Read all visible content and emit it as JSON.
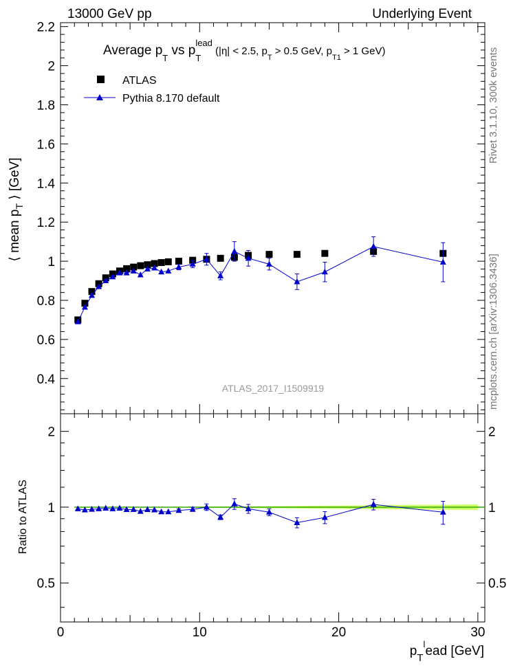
{
  "header": {
    "left": "13000 GeV pp",
    "right": "Underlying Event"
  },
  "side": {
    "top": "Rivet 3.1.10,  300k events",
    "bottom": "mcplots.cern.ch [arXiv:1306.3436]"
  },
  "watermark": "ATLAS_2017_I1509919",
  "title": {
    "a": "Average p",
    "b": "T",
    "c": " vs p",
    "d": "T",
    "e": "lead",
    "f": " (|η| < 2.5, p",
    "g": "T",
    "h": " > 0.5 GeV, p",
    "i": "T1",
    "j": " > 1 GeV)"
  },
  "ylabel_main": {
    "a": "⟨ mean p",
    "b": "T",
    "c": " ⟩ [GeV]"
  },
  "ylabel_ratio": "Ratio to ATLAS",
  "xlabel": {
    "a": "p",
    "b": "T",
    "c": "l",
    "d": "ead [GeV]"
  },
  "chart_data": [
    {
      "type": "scatter",
      "panel": "main",
      "title": "Average pT vs pT lead (|η| < 2.5, pT > 0.5 GeV, pT1 > 1 GeV)",
      "xlabel": "pT lead [GeV]",
      "ylabel": "⟨ mean pT ⟩ [GeV]",
      "xlim": [
        0,
        30.5
      ],
      "ylim": [
        0.22,
        2.22
      ],
      "yticks": [
        0.4,
        0.6,
        0.8,
        1,
        1.2,
        1.4,
        1.6,
        1.8,
        2,
        2.2
      ],
      "xticks": [
        0,
        10,
        20,
        30
      ],
      "legend_position": "top-left",
      "series": [
        {
          "name": "ATLAS",
          "marker": "square",
          "color": "#000000",
          "x": [
            1.25,
            1.75,
            2.25,
            2.75,
            3.25,
            3.75,
            4.25,
            4.75,
            5.25,
            5.75,
            6.25,
            6.75,
            7.25,
            7.75,
            8.5,
            9.5,
            10.5,
            11.5,
            12.5,
            13.5,
            15.0,
            17.0,
            19.0,
            22.5,
            27.5
          ],
          "y": [
            0.7,
            0.785,
            0.845,
            0.885,
            0.915,
            0.935,
            0.95,
            0.962,
            0.97,
            0.977,
            0.982,
            0.988,
            0.993,
            0.997,
            1.0,
            1.005,
            1.01,
            1.015,
            1.02,
            1.03,
            1.035,
            1.035,
            1.04,
            1.05,
            1.04
          ]
        },
        {
          "name": "Pythia 8.170 default",
          "marker": "triangle",
          "color": "#0000cc",
          "x": [
            1.25,
            1.75,
            2.25,
            2.75,
            3.25,
            3.75,
            4.25,
            4.75,
            5.25,
            5.75,
            6.25,
            6.75,
            7.25,
            7.75,
            8.5,
            9.5,
            10.5,
            11.5,
            12.5,
            13.5,
            15.0,
            17.0,
            19.0,
            22.5,
            27.5
          ],
          "y": [
            0.69,
            0.765,
            0.825,
            0.87,
            0.9,
            0.92,
            0.94,
            0.94,
            0.95,
            0.93,
            0.96,
            0.965,
            0.945,
            0.95,
            0.97,
            0.985,
            1.01,
            0.925,
            1.05,
            1.015,
            0.985,
            0.895,
            0.945,
            1.075,
            0.995
          ],
          "yerr": [
            0.005,
            0.005,
            0.005,
            0.006,
            0.006,
            0.007,
            0.008,
            0.008,
            0.009,
            0.01,
            0.01,
            0.011,
            0.012,
            0.012,
            0.014,
            0.018,
            0.03,
            0.02,
            0.05,
            0.04,
            0.03,
            0.04,
            0.05,
            0.05,
            0.1
          ]
        }
      ]
    },
    {
      "type": "scatter",
      "panel": "ratio",
      "ylabel": "Ratio to ATLAS",
      "xlabel": "pT lead [GeV]",
      "xlim": [
        0,
        30.5
      ],
      "ylim": [
        0.35,
        2.35
      ],
      "yscale": "log",
      "yticks": [
        0.5,
        1,
        2
      ],
      "band": {
        "name": "ATLAS uncertainty",
        "color": "#ccff66",
        "x": [
          10,
          16,
          20,
          25,
          30
        ],
        "halfwidth": [
          0.005,
          0.01,
          0.015,
          0.02,
          0.025
        ]
      },
      "series": [
        {
          "name": "Pythia 8.170 default / ATLAS",
          "color": "#0000cc",
          "x": [
            1.25,
            1.75,
            2.25,
            2.75,
            3.25,
            3.75,
            4.25,
            4.75,
            5.25,
            5.75,
            6.25,
            6.75,
            7.25,
            7.75,
            8.5,
            9.5,
            10.5,
            11.5,
            12.5,
            13.5,
            15.0,
            17.0,
            19.0,
            22.5,
            27.5
          ],
          "y": [
            0.985,
            0.975,
            0.98,
            0.985,
            0.99,
            0.985,
            0.99,
            0.978,
            0.979,
            0.962,
            0.978,
            0.975,
            0.958,
            0.958,
            0.97,
            0.98,
            1.0,
            0.912,
            1.03,
            0.985,
            0.955,
            0.868,
            0.91,
            1.025,
            0.955
          ],
          "yerr": [
            0.005,
            0.005,
            0.005,
            0.006,
            0.006,
            0.007,
            0.008,
            0.008,
            0.009,
            0.01,
            0.01,
            0.011,
            0.012,
            0.012,
            0.014,
            0.018,
            0.03,
            0.02,
            0.05,
            0.04,
            0.03,
            0.04,
            0.05,
            0.05,
            0.1
          ]
        }
      ]
    }
  ]
}
